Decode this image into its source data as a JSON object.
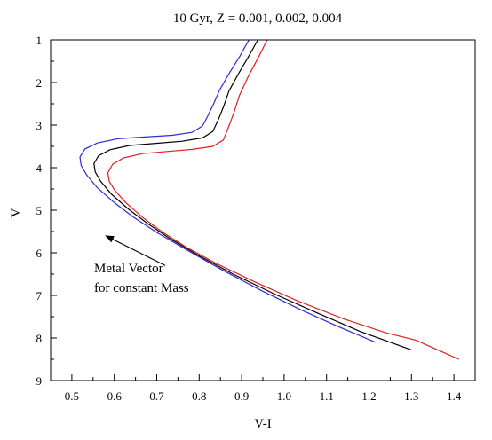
{
  "chart_data": {
    "type": "line",
    "title": "10 Gyr, Z = 0.001, 0.002, 0.004",
    "xlabel": "V-I",
    "ylabel": "V",
    "xlim": [
      0.45,
      1.45
    ],
    "ylim": [
      9,
      1
    ],
    "y_inverted": true,
    "x_ticks": [
      0.5,
      0.6,
      0.7,
      0.8,
      0.9,
      1.0,
      1.1,
      1.2,
      1.3,
      1.4
    ],
    "x_tick_labels": [
      "0.5",
      "0.6",
      "0.7",
      "0.8",
      "0.9",
      "1.0",
      "1.1",
      "1.2",
      "1.3",
      "1.4"
    ],
    "y_ticks": [
      1,
      2,
      3,
      4,
      5,
      6,
      7,
      8,
      9
    ],
    "y_tick_labels": [
      "1",
      "2",
      "3",
      "4",
      "5",
      "6",
      "7",
      "8",
      "9"
    ],
    "grid": false,
    "legend": "none",
    "series": [
      {
        "color": "#2b2bd6",
        "x": [
          0.917,
          0.896,
          0.871,
          0.848,
          0.835,
          0.822,
          0.808,
          0.783,
          0.736,
          0.672,
          0.608,
          0.56,
          0.531,
          0.519,
          0.522,
          0.535,
          0.56,
          0.6,
          0.645,
          0.7,
          0.77,
          0.85,
          0.945,
          1.04,
          1.12,
          1.215
        ],
        "y": [
          1.0,
          1.38,
          1.78,
          2.18,
          2.48,
          2.75,
          3.02,
          3.17,
          3.24,
          3.28,
          3.32,
          3.42,
          3.56,
          3.75,
          3.95,
          4.17,
          4.47,
          4.82,
          5.16,
          5.52,
          5.93,
          6.38,
          6.88,
          7.34,
          7.7,
          8.1
        ]
      },
      {
        "color": "#000000",
        "x": [
          0.938,
          0.917,
          0.892,
          0.87,
          0.858,
          0.846,
          0.832,
          0.808,
          0.76,
          0.698,
          0.636,
          0.59,
          0.563,
          0.552,
          0.555,
          0.568,
          0.593,
          0.633,
          0.678,
          0.732,
          0.8,
          0.88,
          0.98,
          1.08,
          1.18,
          1.3
        ],
        "y": [
          1.0,
          1.38,
          1.8,
          2.2,
          2.55,
          2.85,
          3.15,
          3.3,
          3.38,
          3.43,
          3.48,
          3.58,
          3.72,
          3.9,
          4.1,
          4.32,
          4.62,
          4.97,
          5.31,
          5.67,
          6.07,
          6.5,
          6.98,
          7.42,
          7.85,
          8.28
        ]
      },
      {
        "color": "#e02020",
        "x": [
          0.96,
          0.94,
          0.916,
          0.895,
          0.882,
          0.871,
          0.857,
          0.832,
          0.784,
          0.724,
          0.666,
          0.622,
          0.596,
          0.585,
          0.588,
          0.601,
          0.627,
          0.667,
          0.713,
          0.77,
          0.84,
          0.93,
          1.03,
          1.14,
          1.24,
          1.31,
          1.412
        ],
        "y": [
          1.0,
          1.4,
          1.85,
          2.3,
          2.7,
          3.0,
          3.35,
          3.5,
          3.57,
          3.62,
          3.67,
          3.77,
          3.92,
          4.12,
          4.32,
          4.53,
          4.82,
          5.17,
          5.51,
          5.87,
          6.25,
          6.68,
          7.12,
          7.55,
          7.88,
          8.05,
          8.5
        ]
      }
    ],
    "annotations": {
      "metal_vector_line1": "Metal Vector",
      "metal_vector_line2": "for constant Mass",
      "arrow_from": [
        0.72,
        6.3
      ],
      "arrow_to": [
        0.58,
        5.6
      ]
    }
  }
}
